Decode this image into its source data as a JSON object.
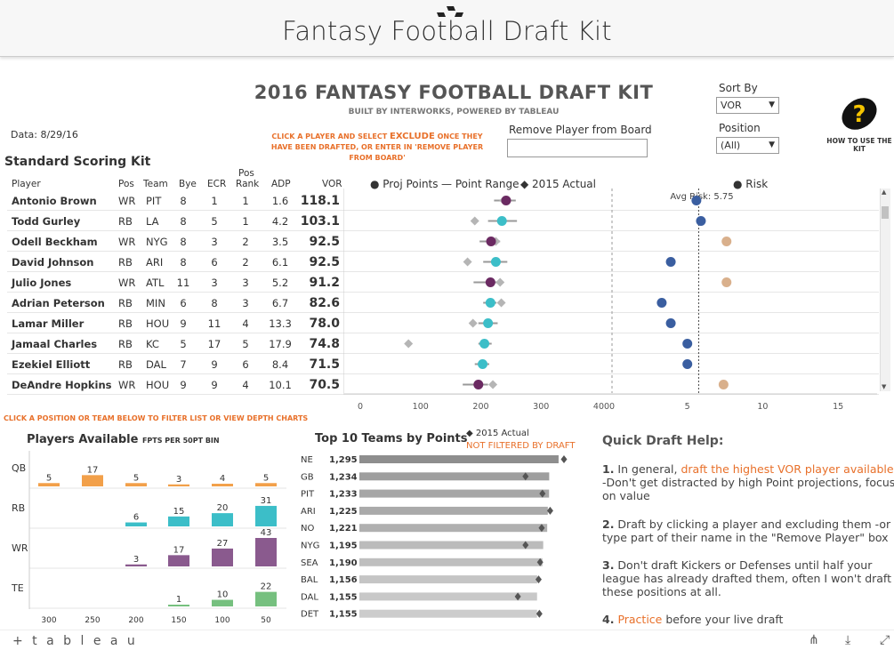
{
  "header": {
    "title": "Fantasy Football Draft Kit"
  },
  "main_title": "2016 FANTASY FOOTBALL DRAFT KIT",
  "sub_title": "BUILT BY INTERWORKS, POWERED BY TABLEAU",
  "data_date": "Data: 8/29/16",
  "instructions": {
    "part1": "CLICK A PLAYER AND SELECT ",
    "exclude": "EXCLUDE",
    "part2": " ONCE THEY HAVE BEEN DRAFTED, OR ENTER IN 'REMOVE PLAYER FROM BOARD'"
  },
  "remove_player": {
    "label": "Remove Player from Board",
    "value": ""
  },
  "sort_by": {
    "label": "Sort By",
    "value": "VOR"
  },
  "position_filter": {
    "label": "Position",
    "value": "(All)"
  },
  "how_to": {
    "label": "HOW TO USE THE KIT"
  },
  "standard_kit_title": "Standard Scoring Kit",
  "columns": {
    "player": "Player",
    "pos": "Pos",
    "team": "Team",
    "bye": "Bye",
    "ecr": "ECR",
    "pos_rank_1": "Pos",
    "pos_rank_2": "Rank",
    "adp": "ADP",
    "vor": "VOR"
  },
  "legend": {
    "proj": "● Proj Points",
    "range": "— Point Range",
    "actual": "◆ 2015 Actual",
    "risk": "● Risk"
  },
  "avg_risk_label": "Avg Risk: 5.75",
  "colors": {
    "rb": "#3cbec8",
    "wr": "#6b2a62",
    "risk_low": "#3a5ea0",
    "risk_high": "#d9b08c",
    "orange": "#e8702a",
    "qb": "#f2a04a",
    "te": "#76c07f",
    "wr_bar": "#8a5a8e"
  },
  "players": [
    {
      "name": "Antonio Brown",
      "pos": "WR",
      "team": "PIT",
      "bye": "8",
      "ecr": "1",
      "pos_rank": "1",
      "adp": "1.6",
      "vor": "118.1",
      "proj": 242,
      "low": 222,
      "high": 258,
      "actual": 238,
      "risk": 5.6
    },
    {
      "name": "Todd Gurley",
      "pos": "RB",
      "team": "LA",
      "bye": "8",
      "ecr": "5",
      "pos_rank": "1",
      "adp": "4.2",
      "vor": "103.1",
      "proj": 235,
      "low": 212,
      "high": 260,
      "actual": 190,
      "risk": 5.9
    },
    {
      "name": "Odell Beckham",
      "pos": "WR",
      "team": "NYG",
      "bye": "8",
      "ecr": "3",
      "pos_rank": "2",
      "adp": "3.5",
      "vor": "92.5",
      "proj": 217,
      "low": 198,
      "high": 232,
      "actual": 225,
      "risk": 7.6
    },
    {
      "name": "David Johnson",
      "pos": "RB",
      "team": "ARI",
      "bye": "8",
      "ecr": "6",
      "pos_rank": "2",
      "adp": "6.1",
      "vor": "92.5",
      "proj": 225,
      "low": 204,
      "high": 244,
      "actual": 178,
      "risk": 3.9
    },
    {
      "name": "Julio Jones",
      "pos": "WR",
      "team": "ATL",
      "bye": "11",
      "ecr": "3",
      "pos_rank": "3",
      "adp": "5.2",
      "vor": "91.2",
      "proj": 216,
      "low": 188,
      "high": 238,
      "actual": 232,
      "risk": 7.6
    },
    {
      "name": "Adrian Peterson",
      "pos": "RB",
      "team": "MIN",
      "bye": "6",
      "ecr": "8",
      "pos_rank": "3",
      "adp": "6.7",
      "vor": "82.6",
      "proj": 216,
      "low": 204,
      "high": 226,
      "actual": 234,
      "risk": 3.3
    },
    {
      "name": "Lamar Miller",
      "pos": "RB",
      "team": "HOU",
      "bye": "9",
      "ecr": "11",
      "pos_rank": "4",
      "adp": "13.3",
      "vor": "78.0",
      "proj": 212,
      "low": 196,
      "high": 228,
      "actual": 187,
      "risk": 3.9
    },
    {
      "name": "Jamaal Charles",
      "pos": "RB",
      "team": "KC",
      "bye": "5",
      "ecr": "17",
      "pos_rank": "5",
      "adp": "17.9",
      "vor": "74.8",
      "proj": 206,
      "low": 196,
      "high": 218,
      "actual": 80,
      "risk": 5.0
    },
    {
      "name": "Ezekiel Elliott",
      "pos": "RB",
      "team": "DAL",
      "bye": "7",
      "ecr": "9",
      "pos_rank": "6",
      "adp": "8.4",
      "vor": "71.5",
      "proj": 203,
      "low": 190,
      "high": 214,
      "actual": null,
      "risk": 5.0
    },
    {
      "name": "DeAndre Hopkins",
      "pos": "WR",
      "team": "HOU",
      "bye": "9",
      "ecr": "9",
      "pos_rank": "4",
      "adp": "10.1",
      "vor": "70.5",
      "proj": 196,
      "low": 170,
      "high": 212,
      "actual": 220,
      "risk": 7.4
    }
  ],
  "points_axis": {
    "ticks": [
      "0",
      "100",
      "200",
      "300",
      "400"
    ],
    "min": 0,
    "max": 400
  },
  "risk_axis": {
    "ticks": [
      "0",
      "5",
      "10",
      "15"
    ],
    "min": 0,
    "max": 17
  },
  "filter_note": "CLICK A POSITION OR TEAM BELOW TO FILTER LIST OR VIEW DEPTH CHARTS",
  "players_available": {
    "title": "Players Available",
    "subtitle": "FPTS PER 50PT BIN",
    "bins": [
      "300",
      "250",
      "200",
      "150",
      "100",
      "50"
    ],
    "positions": [
      {
        "pos": "QB",
        "counts": [
          5,
          17,
          5,
          3,
          4,
          5
        ]
      },
      {
        "pos": "RB",
        "counts": [
          null,
          null,
          6,
          15,
          20,
          31
        ]
      },
      {
        "pos": "WR",
        "counts": [
          null,
          null,
          3,
          17,
          27,
          43
        ]
      },
      {
        "pos": "TE",
        "counts": [
          null,
          null,
          null,
          1,
          10,
          22
        ]
      }
    ]
  },
  "top_teams": {
    "title": "Top 10 Teams by Points",
    "legend_actual": "◆ 2015 Actual",
    "legend_note": "NOT FILTERED BY DRAFT",
    "teams": [
      {
        "team": "NE",
        "points_label": "1,295",
        "points": 1295,
        "actual": 1330
      },
      {
        "team": "GB",
        "points_label": "1,234",
        "points": 1234,
        "actual": 1080
      },
      {
        "team": "PIT",
        "points_label": "1,233",
        "points": 1233,
        "actual": 1190
      },
      {
        "team": "ARI",
        "points_label": "1,225",
        "points": 1225,
        "actual": 1240
      },
      {
        "team": "NO",
        "points_label": "1,221",
        "points": 1221,
        "actual": 1185
      },
      {
        "team": "NYG",
        "points_label": "1,195",
        "points": 1195,
        "actual": 1080
      },
      {
        "team": "SEA",
        "points_label": "1,190",
        "points": 1190,
        "actual": 1175
      },
      {
        "team": "BAL",
        "points_label": "1,156",
        "points": 1156,
        "actual": 1165
      },
      {
        "team": "DAL",
        "points_label": "1,155",
        "points": 1155,
        "actual": 1030
      },
      {
        "team": "DET",
        "points_label": "1,155",
        "points": 1155,
        "actual": 1170
      }
    ]
  },
  "quick_help": {
    "title": "Quick Draft Help:",
    "items": [
      {
        "num": "1.",
        "pre": " In general, ",
        "highlight": "draft the highest VOR player available",
        "post": " -Don't get distracted by high Point projections, focus on value"
      },
      {
        "num": "2.",
        "pre": " Draft by clicking a player and excluding them -or type part of their name in the \"Remove Player\" box",
        "highlight": "",
        "post": ""
      },
      {
        "num": "3.",
        "pre": " Don't draft Kickers or Defenses until half your league has already drafted them, often I won't draft these positions at all.",
        "highlight": "",
        "post": ""
      },
      {
        "num": "4.",
        "pre": " ",
        "highlight": "Practice",
        "post": " before your live draft"
      }
    ]
  },
  "footer": {
    "brand": "+ t a b l e a u"
  }
}
